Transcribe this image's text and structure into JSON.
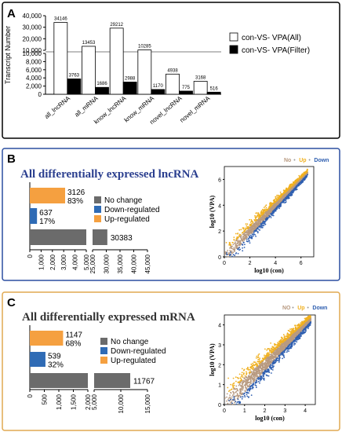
{
  "panels": {
    "a": {
      "letter": "A"
    },
    "b": {
      "letter": "B",
      "title": "All differentially expressed lncRNA"
    },
    "c": {
      "letter": "C",
      "title": "All differentially expressed mRNA"
    }
  },
  "chart_data": [
    {
      "id": "A",
      "type": "bar",
      "ylabel": "Transcript Number",
      "categories": [
        "all_lncRNA",
        "all_mRNA",
        "know_lncRNA",
        "know_mRNA",
        "novel_lncRNA",
        "novel_mRNA"
      ],
      "series": [
        {
          "name": "con-VS- VPA(All)",
          "color": "#ffffff",
          "values": [
            34146,
            13453,
            29212,
            10285,
            4938,
            3168
          ]
        },
        {
          "name": "con-VS- VPA(Filter)",
          "color": "#000000",
          "values": [
            3763,
            1686,
            2988,
            1170,
            775,
            516
          ]
        }
      ],
      "y_break": {
        "lower": [
          0,
          10000
        ],
        "upper": [
          10000,
          40000
        ]
      },
      "yticks_lower": [
        "0",
        "2,000",
        "4,000",
        "6,000",
        "8,000",
        "10,000"
      ],
      "yticks_upper": [
        "10,000",
        "20,000",
        "30,000",
        "40,000"
      ],
      "legend_position": "right"
    },
    {
      "id": "B-bars",
      "type": "bar",
      "orientation": "horizontal",
      "categories": [
        "Up-regulated",
        "Down-regulated",
        "No change"
      ],
      "values": [
        3126,
        637,
        30383
      ],
      "percents": [
        "83%",
        "17%",
        ""
      ],
      "colors": {
        "Up-regulated": "#f5a040",
        "Down-regulated": "#2f6bb5",
        "No change": "#6b6b6b"
      },
      "x_break": {
        "left": [
          0,
          5000
        ],
        "right": [
          25000,
          45000
        ]
      },
      "xticks_left": [
        "0",
        "1,000",
        "2,000",
        "3,000",
        "4,000",
        "5,000"
      ],
      "xticks_right": [
        "25,000",
        "30,000",
        "35,000",
        "40,000",
        "45,000"
      ],
      "legend": [
        "No change",
        "Down-regulated",
        "Up-regulated"
      ]
    },
    {
      "id": "B-scatter",
      "type": "scatter",
      "xlabel": "log10 (con)",
      "ylabel": "log10 (VPA)",
      "xlim": [
        0,
        7
      ],
      "ylim": [
        0,
        7
      ],
      "xticks": [
        "0",
        "2",
        "4",
        "6"
      ],
      "yticks": [
        "0",
        "2",
        "4",
        "6"
      ],
      "legend": [
        {
          "label": "No",
          "color": "#b89a80"
        },
        {
          "label": "Up",
          "color": "#f0b020"
        },
        {
          "label": "Down",
          "color": "#2f5fb0"
        }
      ],
      "legend_separator": "•"
    },
    {
      "id": "C-bars",
      "type": "bar",
      "orientation": "horizontal",
      "categories": [
        "Up-regulated",
        "Down-regulated",
        "No change"
      ],
      "values": [
        1147,
        539,
        11767
      ],
      "percents": [
        "68%",
        "32%",
        ""
      ],
      "colors": {
        "Up-regulated": "#f5a040",
        "Down-regulated": "#2f6bb5",
        "No change": "#6b6b6b"
      },
      "x_break": {
        "left": [
          0,
          2000
        ],
        "right": [
          5000,
          15000
        ]
      },
      "xticks_left": [
        "0",
        "500",
        "1,000",
        "1,500",
        "2,000"
      ],
      "xticks_right": [
        "5,000",
        "10,000",
        "15,000"
      ],
      "legend": [
        "No change",
        "Down-regulated",
        "Up-regulated"
      ]
    },
    {
      "id": "C-scatter",
      "type": "scatter",
      "xlabel": "log10 (con)",
      "ylabel": "log10 (VPA)",
      "xlim": [
        0,
        4.5
      ],
      "ylim": [
        0,
        4.5
      ],
      "xticks": [
        "0",
        "1",
        "2",
        "3",
        "4"
      ],
      "yticks": [
        "0",
        "1",
        "2",
        "3",
        "4"
      ],
      "legend": [
        {
          "label": "NO",
          "color": "#b89a80"
        },
        {
          "label": "Up",
          "color": "#f0b020"
        },
        {
          "label": "Down",
          "color": "#2f5fb0"
        }
      ],
      "legend_separator": "•"
    }
  ]
}
